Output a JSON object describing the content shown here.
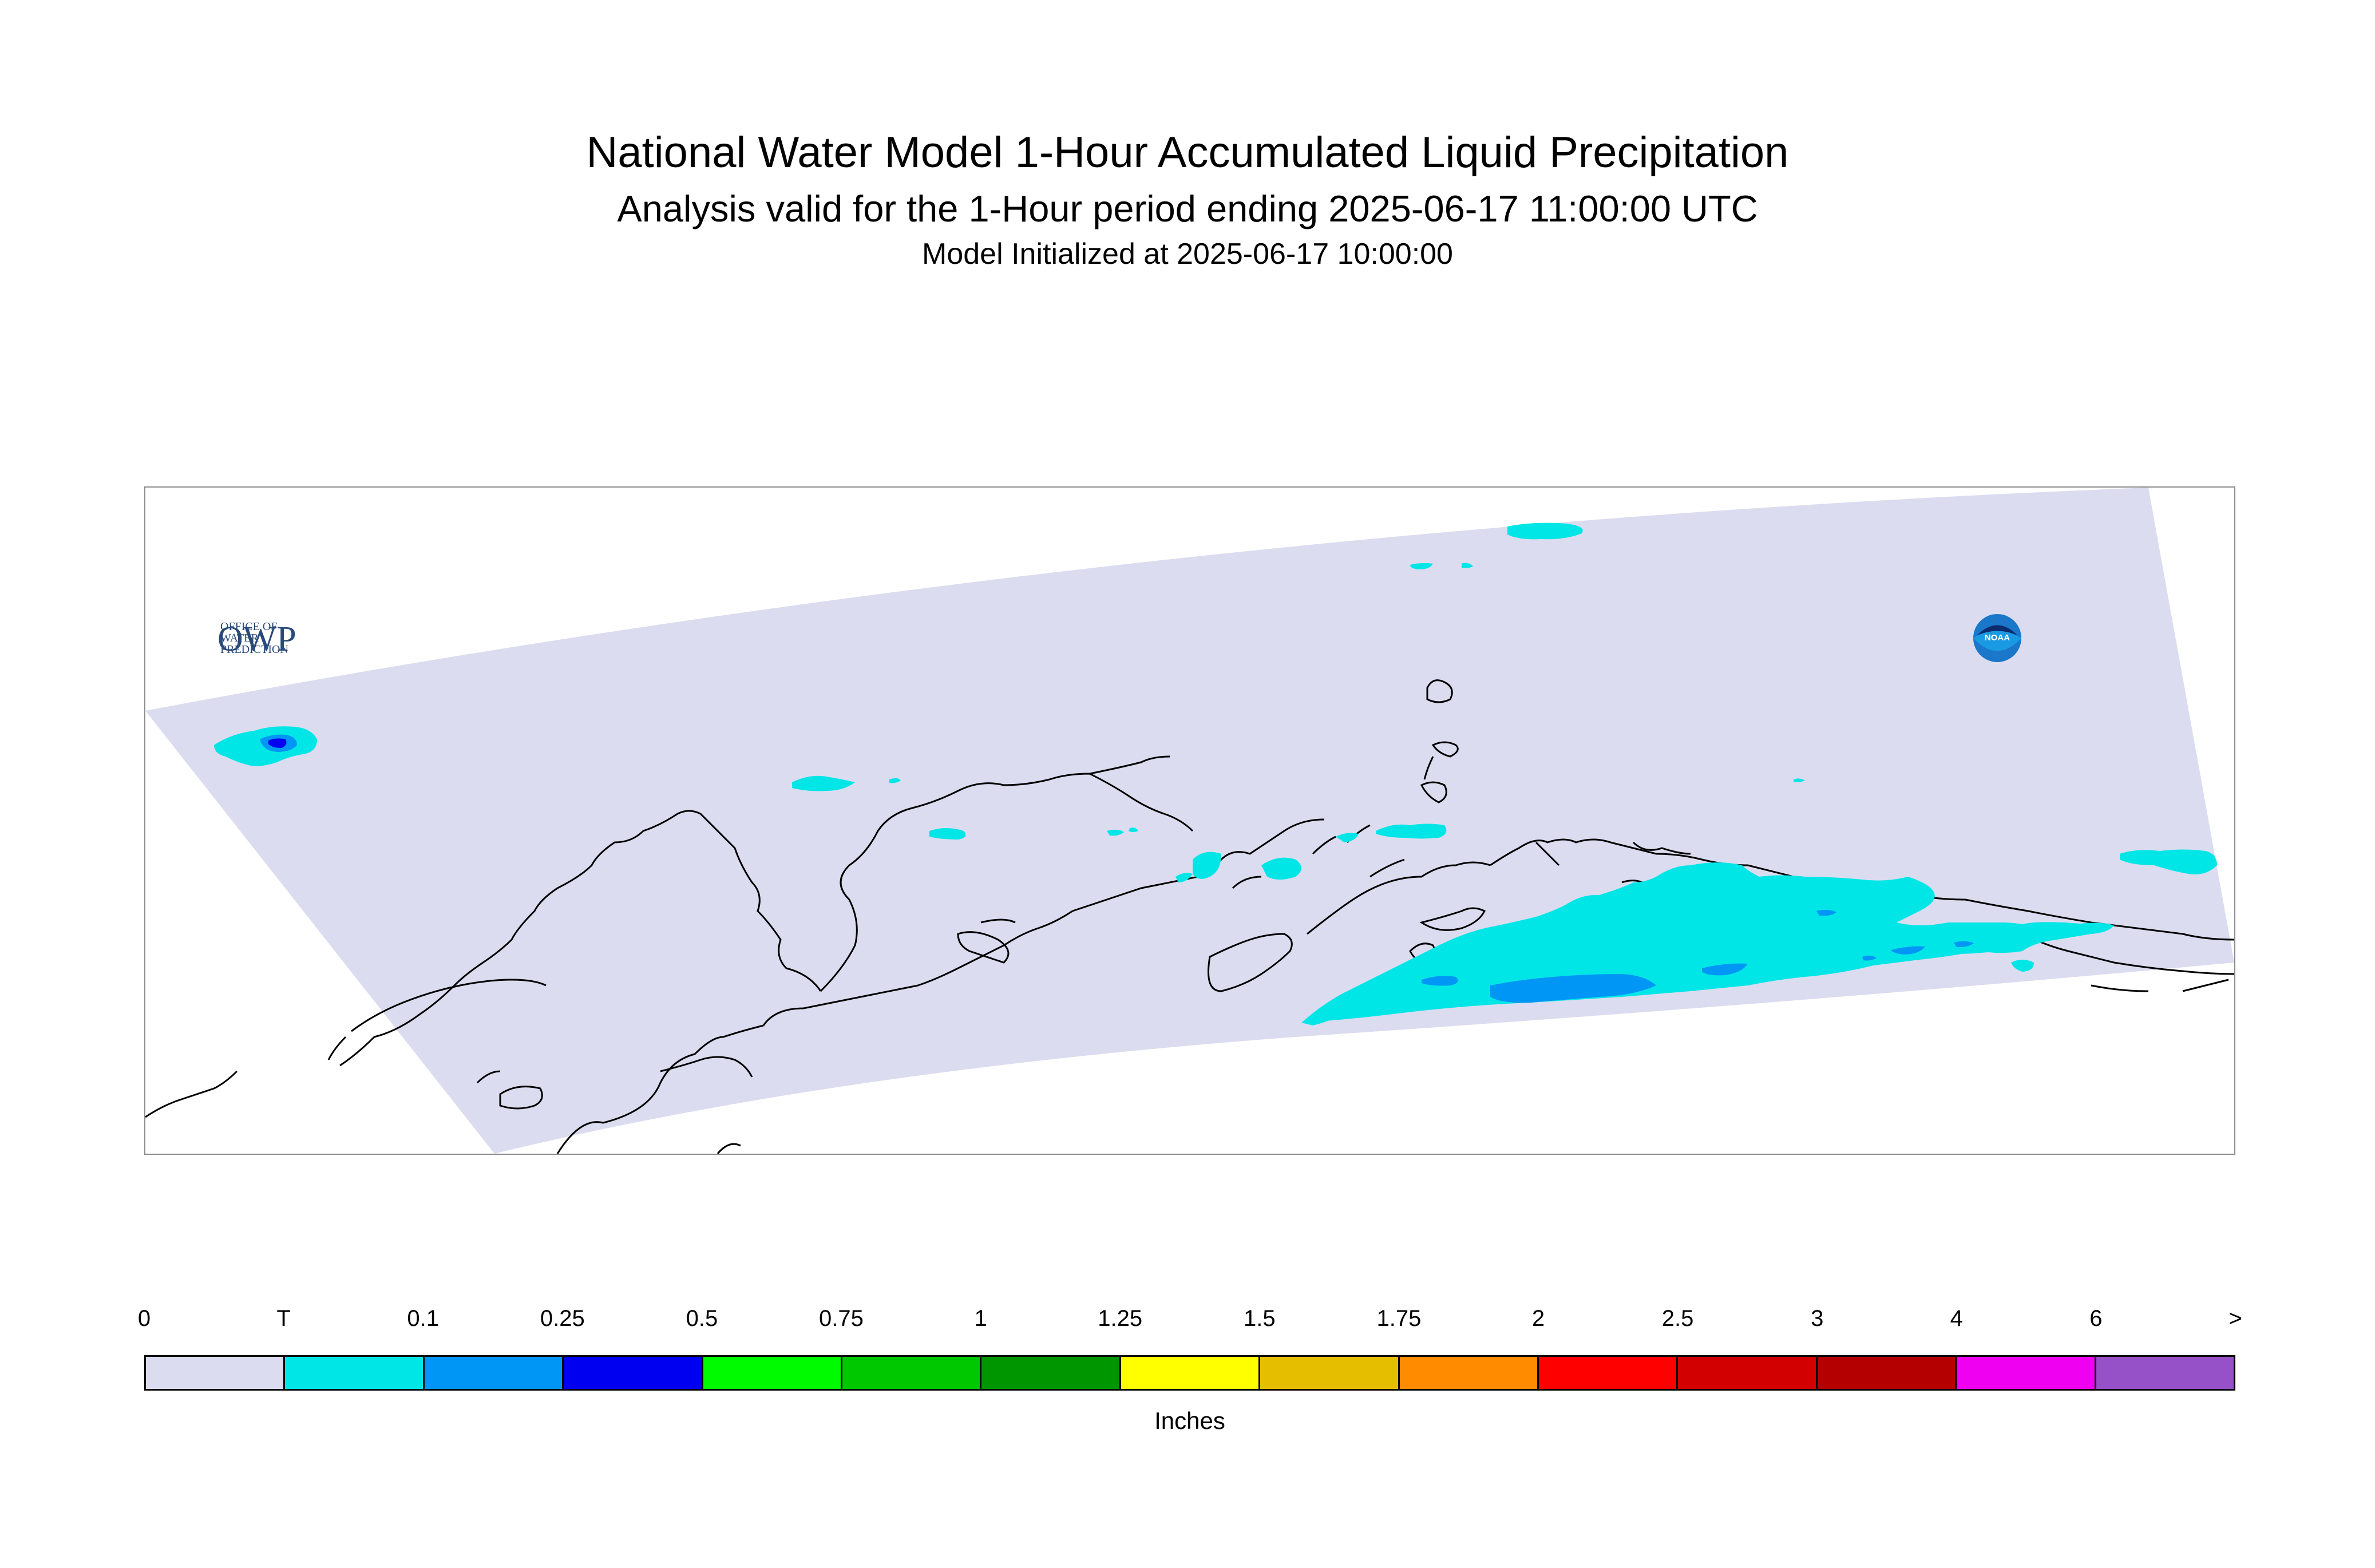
{
  "header": {
    "title": "National Water Model 1-Hour Accumulated Liquid Precipitation",
    "subtitle": "Analysis valid for the 1-Hour period ending 2025-06-17 11:00:00 UTC",
    "init_line": "Model Initialized at 2025-06-17 10:00:00"
  },
  "logos": {
    "owp_mark": "OWP",
    "owp_text_line1": "OFFICE OF",
    "owp_text_line2": "WATER",
    "owp_text_line3": "PREDICTION",
    "noaa_text": "NOAA"
  },
  "legend": {
    "units": "Inches",
    "labels": [
      "0",
      "T",
      "0.1",
      "0.25",
      "0.5",
      "0.75",
      "1",
      "1.25",
      "1.5",
      "1.75",
      "2",
      "2.5",
      "3",
      "4",
      "6",
      ">"
    ],
    "colors": [
      "#dcdcf0",
      "#00e6e6",
      "#0096f5",
      "#0000f0",
      "#00fa00",
      "#00c800",
      "#009600",
      "#ffff00",
      "#e6be00",
      "#ff8c00",
      "#ff0000",
      "#d20000",
      "#b40000",
      "#f000f0",
      "#9650c8"
    ]
  },
  "map": {
    "region": "Alaska",
    "domain_color": "#dcdcf0",
    "coastline_color": "#000000",
    "precip_colors": {
      "trace": "#00e6e6",
      "tenth": "#0096f5",
      "quarter": "#0000f0"
    }
  }
}
